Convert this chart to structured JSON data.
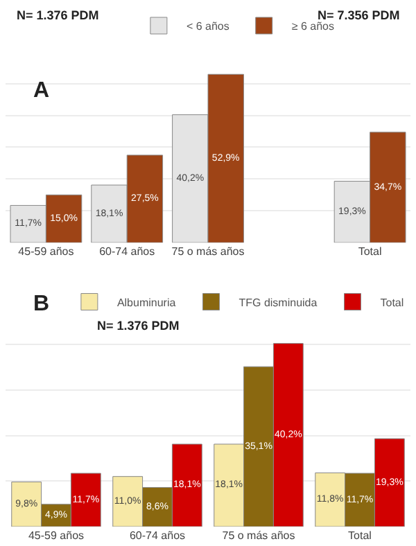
{
  "chart_data": [
    {
      "type": "bar",
      "categories": [
        "45-59 años",
        "60-74 años",
        "75 o más años",
        null,
        "Total"
      ],
      "series": [
        {
          "name": "< 6 años",
          "color": "#e4e4e4",
          "values": [
            11.7,
            18.1,
            40.2,
            null,
            19.3
          ],
          "value_labels": [
            "11,7%",
            "18,1%",
            "40,2%",
            null,
            "19,3%"
          ]
        },
        {
          "name": "≥ 6 años",
          "color": "#9e4416",
          "values": [
            15.0,
            27.5,
            52.9,
            null,
            34.7
          ],
          "value_labels": [
            "15,0%",
            "27,5%",
            "52,9%",
            null,
            "34,7%"
          ]
        }
      ],
      "tick_labels": "x",
      "grid": "y",
      "legend": "top",
      "annotations": [
        "N= 1.376 PDM",
        "N= 7.356 PDM",
        "A"
      ]
    },
    {
      "type": "bar",
      "categories": [
        "45-59 años",
        "60-74 años",
        "75 o más años",
        "Total"
      ],
      "series": [
        {
          "name": "Albuminuria",
          "color": "#f7e9a6",
          "values": [
            9.8,
            11.0,
            18.1,
            11.8
          ],
          "value_labels": [
            "9,8%",
            "11,0%",
            "18,1%",
            "11,8%"
          ]
        },
        {
          "name": "TFG disminuida",
          "color": "#8a6810",
          "values": [
            4.9,
            8.6,
            35.1,
            11.7
          ],
          "value_labels": [
            "4,9%",
            "8,6%",
            "35,1%",
            "11,7%"
          ]
        },
        {
          "name": "Total",
          "color": "#d10000",
          "values": [
            11.7,
            18.1,
            40.2,
            19.3
          ],
          "value_labels": [
            "11,7%",
            "18,1%",
            "40,2%",
            "19,3%"
          ]
        }
      ],
      "tick_labels": "x",
      "grid": "y",
      "legend": "top",
      "annotations": [
        "B",
        "N= 1.376 PDM"
      ]
    }
  ]
}
